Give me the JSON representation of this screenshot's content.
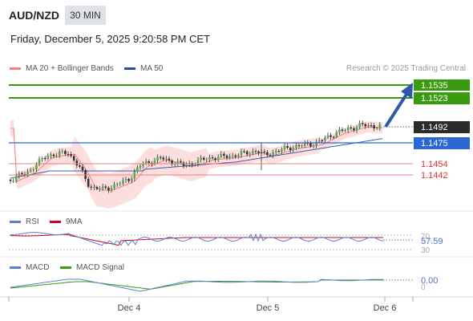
{
  "header": {
    "pair": "AUD/NZD",
    "timeframe": "30 MIN"
  },
  "datetime": "Friday, December 5, 2025 9:20:58 PM CET",
  "legend": {
    "ma20": "MA 20 + Bollinger Bands",
    "ma50": "MA 50",
    "ma20_color": "#f08080",
    "ma50_color": "#3b5fa8"
  },
  "copyright": "Research © 2025 Trading Central",
  "levels": [
    {
      "value": "1.1535",
      "kind": "target",
      "color": "#3a9a10"
    },
    {
      "value": "1.1523",
      "kind": "target",
      "color": "#3a9a10"
    },
    {
      "value": "1.1492",
      "kind": "current",
      "color": "#2b2b2b"
    },
    {
      "value": "1.1475",
      "kind": "pivot",
      "color": "#2a67d3"
    },
    {
      "value": "1.1454",
      "kind": "support",
      "color": "#e03030"
    },
    {
      "value": "1.1442",
      "kind": "support",
      "color": "#e03030"
    }
  ],
  "rsi": {
    "label": "RSI",
    "ma_label": "9MA",
    "value": "57.59",
    "level_high": "70",
    "level_low": "30",
    "rsi_color": "#5b7fd6",
    "ma_color": "#d0021b"
  },
  "macd": {
    "label": "MACD",
    "signal_label": "MACD Signal",
    "value": "0.00",
    "zero": "0",
    "macd_color": "#5b7fd6",
    "signal_color": "#3a9a10"
  },
  "xaxis": {
    "ticks": [
      "Dec 4",
      "Dec 5",
      "Dec 6"
    ]
  }
}
